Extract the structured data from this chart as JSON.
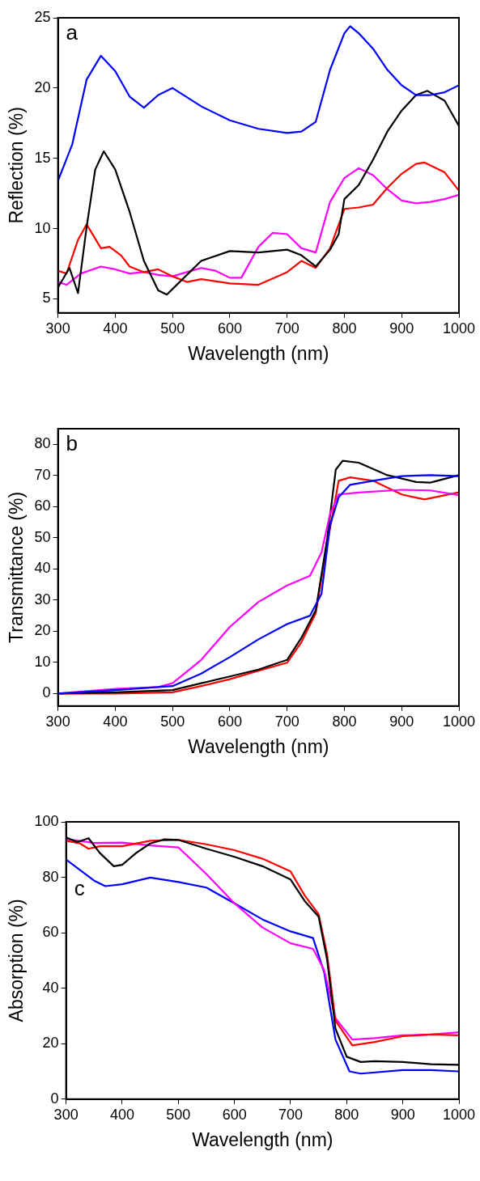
{
  "chart_data": [
    {
      "type": "line",
      "xlabel": "Wavelength (nm)",
      "ylabel": "Reflection (%)",
      "annotations": [
        "a"
      ],
      "xlim": [
        300,
        1000
      ],
      "xticks": [
        300,
        400,
        500,
        600,
        700,
        800,
        900,
        1000
      ],
      "ylim": [
        4,
        25
      ],
      "yticks": [
        5,
        10,
        15,
        20,
        25
      ],
      "grid": false,
      "legend": false,
      "marker": "none",
      "line_style": "solid",
      "series": [
        {
          "color": "#0000ff",
          "x": [
            300,
            325,
            350,
            375,
            400,
            425,
            450,
            475,
            500,
            550,
            600,
            650,
            700,
            725,
            750,
            775,
            800,
            810,
            825,
            850,
            875,
            900,
            925,
            950,
            975,
            1000
          ],
          "values": [
            13.4,
            16.0,
            20.6,
            22.3,
            21.2,
            19.4,
            18.6,
            19.5,
            20.0,
            18.7,
            17.7,
            17.1,
            16.8,
            16.9,
            17.6,
            21.3,
            23.9,
            24.4,
            23.9,
            22.8,
            21.3,
            20.2,
            19.5,
            19.5,
            19.7,
            20.2
          ]
        },
        {
          "color": "#000000",
          "x": [
            300,
            320,
            335,
            350,
            365,
            380,
            400,
            425,
            450,
            475,
            490,
            525,
            550,
            600,
            650,
            700,
            725,
            750,
            775,
            790,
            800,
            825,
            850,
            875,
            900,
            925,
            945,
            975,
            1000
          ],
          "values": [
            5.8,
            7.2,
            5.4,
            10.1,
            14.2,
            15.5,
            14.2,
            11.2,
            7.7,
            5.6,
            5.3,
            6.7,
            7.7,
            8.4,
            8.3,
            8.5,
            8.1,
            7.3,
            8.5,
            9.6,
            12.1,
            13.1,
            14.9,
            16.9,
            18.4,
            19.5,
            19.8,
            19.1,
            17.3
          ]
        },
        {
          "color": "#ff0000",
          "x": [
            300,
            315,
            335,
            350,
            375,
            390,
            410,
            425,
            450,
            475,
            500,
            525,
            550,
            600,
            650,
            700,
            725,
            750,
            775,
            800,
            825,
            850,
            875,
            900,
            925,
            940,
            975,
            1000
          ],
          "values": [
            7.0,
            6.8,
            9.2,
            10.3,
            8.6,
            8.7,
            8.1,
            7.3,
            6.9,
            7.1,
            6.6,
            6.2,
            6.4,
            6.1,
            6.0,
            6.9,
            7.7,
            7.2,
            8.6,
            11.4,
            11.5,
            11.7,
            12.9,
            13.9,
            14.6,
            14.7,
            14.0,
            12.7
          ]
        },
        {
          "color": "#ff00ff",
          "x": [
            300,
            315,
            340,
            375,
            400,
            425,
            450,
            475,
            500,
            525,
            550,
            575,
            600,
            620,
            650,
            675,
            700,
            725,
            750,
            775,
            800,
            825,
            850,
            875,
            900,
            925,
            950,
            975,
            1000
          ],
          "values": [
            6.2,
            6.0,
            6.8,
            7.3,
            7.1,
            6.8,
            6.9,
            6.7,
            6.6,
            6.9,
            7.2,
            7.0,
            6.5,
            6.5,
            8.7,
            9.7,
            9.6,
            8.6,
            8.3,
            11.9,
            13.6,
            14.3,
            13.8,
            12.8,
            12.0,
            11.8,
            11.9,
            12.1,
            12.4
          ]
        }
      ]
    },
    {
      "type": "line",
      "xlabel": "Wavelength (nm)",
      "ylabel": "Transmittance (%)",
      "annotations": [
        "b"
      ],
      "xlim": [
        300,
        1000
      ],
      "xticks": [
        300,
        400,
        500,
        600,
        700,
        800,
        900,
        1000
      ],
      "ylim": [
        -4,
        85
      ],
      "yticks": [
        0,
        10,
        20,
        30,
        40,
        50,
        60,
        70,
        80
      ],
      "grid": false,
      "legend": false,
      "marker": "none",
      "line_style": "solid",
      "series": [
        {
          "color": "#0000ff",
          "x": [
            300,
            400,
            500,
            550,
            600,
            650,
            700,
            740,
            760,
            775,
            790,
            810,
            850,
            900,
            950,
            1000
          ],
          "values": [
            0,
            1.1,
            2.4,
            6.4,
            11.7,
            17.4,
            22.3,
            25,
            32,
            54,
            63,
            67,
            68.3,
            69.8,
            70.1,
            69.8
          ]
        },
        {
          "color": "#ff00ff",
          "x": [
            300,
            400,
            475,
            500,
            550,
            600,
            650,
            700,
            740,
            760,
            775,
            790,
            825,
            900,
            950,
            1000
          ],
          "values": [
            0,
            1.5,
            2.1,
            3.3,
            10.8,
            21.4,
            29.4,
            34.7,
            37.8,
            45.3,
            57.7,
            63.9,
            64.5,
            65.4,
            65.2,
            63.7
          ]
        },
        {
          "color": "#000000",
          "x": [
            300,
            400,
            500,
            550,
            600,
            650,
            700,
            725,
            750,
            770,
            785,
            797,
            825,
            875,
            925,
            950,
            1000
          ],
          "values": [
            0,
            0.4,
            1.1,
            3.3,
            5.5,
            7.7,
            10.8,
            17.9,
            26.7,
            49.7,
            71.9,
            74.7,
            74.1,
            70.1,
            67.9,
            67.7,
            70.1
          ]
        },
        {
          "color": "#ff0000",
          "x": [
            300,
            400,
            500,
            550,
            600,
            650,
            700,
            725,
            750,
            770,
            790,
            810,
            850,
            900,
            940,
            1000
          ],
          "values": [
            0,
            0,
            0.4,
            2.4,
            4.6,
            7.3,
            9.9,
            16.5,
            25.8,
            48,
            68.3,
            69.4,
            68.3,
            63.9,
            62.3,
            64.6
          ]
        }
      ]
    },
    {
      "type": "line",
      "xlabel": "Wavelength (nm)",
      "ylabel": "Absorption (%)",
      "annotations": [
        "c"
      ],
      "xlim": [
        300,
        1000
      ],
      "xticks": [
        300,
        400,
        500,
        600,
        700,
        800,
        900,
        1000
      ],
      "ylim": [
        0,
        100
      ],
      "yticks": [
        0,
        20,
        40,
        60,
        80,
        100
      ],
      "grid": false,
      "legend": false,
      "marker": "none",
      "line_style": "solid",
      "series": [
        {
          "color": "#000000",
          "x": [
            300,
            320,
            340,
            360,
            385,
            400,
            425,
            450,
            475,
            500,
            550,
            600,
            650,
            700,
            725,
            750,
            765,
            780,
            800,
            825,
            850,
            900,
            950,
            1000
          ],
          "values": [
            94.4,
            92.7,
            94.1,
            88.8,
            84,
            84.5,
            88.8,
            92.2,
            93.7,
            93.5,
            90.3,
            87.4,
            84,
            79.2,
            71.5,
            65.8,
            50.4,
            25.4,
            15.3,
            13.4,
            13.7,
            13.4,
            12.6,
            12.4
          ]
        },
        {
          "color": "#ff0000",
          "x": [
            300,
            325,
            340,
            360,
            400,
            450,
            500,
            550,
            600,
            650,
            700,
            725,
            750,
            765,
            780,
            810,
            850,
            900,
            950,
            1000
          ],
          "values": [
            93.2,
            92.2,
            90.3,
            91.2,
            91.2,
            93.2,
            93.5,
            91.9,
            89.8,
            86.7,
            82.1,
            73.5,
            66.7,
            52.3,
            28.3,
            19.4,
            20.6,
            22.7,
            23.3,
            23
          ]
        },
        {
          "color": "#ff00ff",
          "x": [
            300,
            350,
            400,
            450,
            500,
            550,
            600,
            650,
            700,
            740,
            760,
            780,
            810,
            850,
            900,
            950,
            1000
          ],
          "values": [
            93.8,
            92.4,
            92.5,
            91.5,
            90.8,
            81.2,
            70.6,
            61.9,
            56.2,
            54.2,
            46.5,
            29.2,
            21.5,
            22,
            23,
            23.3,
            24.1
          ]
        },
        {
          "color": "#0000ff",
          "x": [
            300,
            325,
            350,
            370,
            400,
            450,
            500,
            550,
            600,
            650,
            700,
            740,
            760,
            780,
            805,
            825,
            900,
            950,
            1000
          ],
          "values": [
            86.4,
            82.6,
            78.8,
            76.8,
            77.5,
            79.9,
            78.3,
            76.3,
            70.6,
            64.8,
            60.5,
            58.1,
            45.6,
            21.5,
            10,
            9.2,
            10.5,
            10.5,
            10
          ]
        }
      ]
    }
  ]
}
